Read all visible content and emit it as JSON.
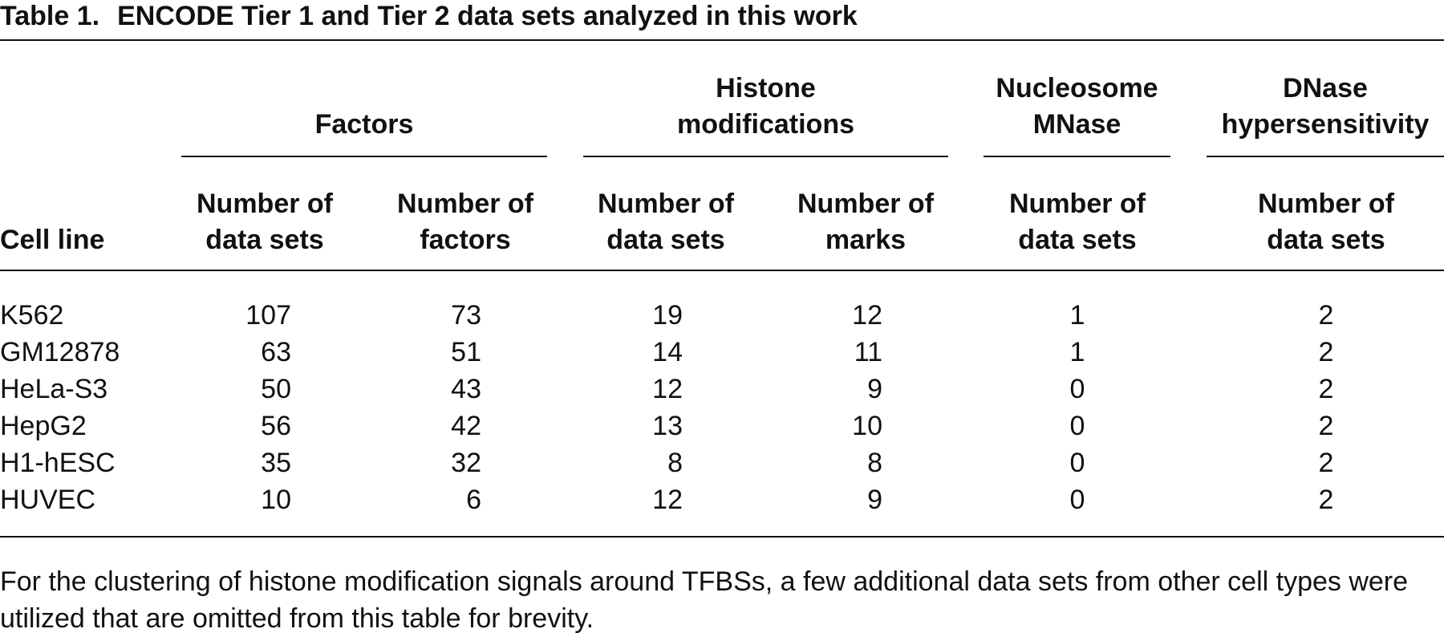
{
  "table": {
    "label": "Table 1.",
    "title": "ENCODE Tier 1 and Tier 2 data sets analyzed in this work",
    "groups": [
      "Factors",
      "Histone modifications",
      "Nucleosome MNase",
      "DNase hypersensitivity"
    ],
    "columns": [
      "Cell line",
      "Number of data sets",
      "Number of factors",
      "Number of data sets",
      "Number of marks",
      "Number of data sets",
      "Number of data sets"
    ],
    "rows": [
      [
        "K562",
        107,
        73,
        19,
        12,
        1,
        2
      ],
      [
        "GM12878",
        63,
        51,
        14,
        11,
        1,
        2
      ],
      [
        "HeLa-S3",
        50,
        43,
        12,
        9,
        0,
        2
      ],
      [
        "HepG2",
        56,
        42,
        13,
        10,
        0,
        2
      ],
      [
        "H1-hESC",
        35,
        32,
        8,
        8,
        0,
        2
      ],
      [
        "HUVEC",
        10,
        6,
        12,
        9,
        0,
        2
      ]
    ],
    "footnote": "For the clustering of histone modification signals around TFBSs, a few additional data sets from other cell types were utilized that are omitted from this table for brevity."
  }
}
